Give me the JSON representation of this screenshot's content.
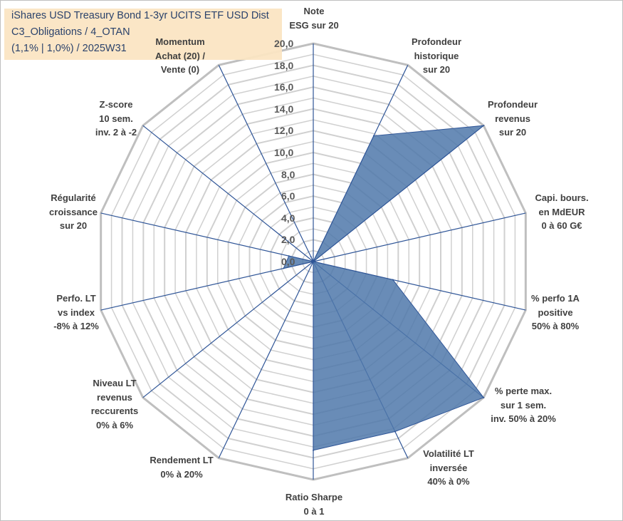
{
  "title_box": {
    "lines": [
      "iShares USD Treasury Bond 1-3yr UCITS ETF USD Dist",
      "C3_Obligations / 4_OTAN",
      "(1,1% | 1,0%) / 2025W31"
    ],
    "background": "#fbe5c3",
    "text_color": "#1f3864"
  },
  "chart_data": {
    "type": "radar",
    "axes": [
      [
        "Note",
        "ESG sur 20"
      ],
      [
        "Profondeur",
        "historique",
        "sur 20"
      ],
      [
        "Profondeur",
        "revenus",
        "sur 20"
      ],
      [
        "Capi. bours.",
        "en MdEUR",
        "0 à 60 G€"
      ],
      [
        "% perfo 1A",
        "positive",
        "50% à 80%"
      ],
      [
        "% perte max.",
        "sur 1 sem.",
        "inv. 50% à 20%"
      ],
      [
        "Volatilité LT",
        "inversée",
        "40% à 0%"
      ],
      [
        "Ratio Sharpe",
        "0 à 1"
      ],
      [
        "Rendement LT",
        "0% à 20%"
      ],
      [
        "Niveau LT",
        "revenus",
        "reccurents",
        "0% à 6%"
      ],
      [
        "Perfo. LT",
        "vs index",
        "-8% à 12%"
      ],
      [
        "Régularité",
        "croissance",
        "sur 20"
      ],
      [
        "Z-score",
        "10 sem.",
        "inv. 2 à -2"
      ],
      [
        "Momentum",
        "Achat (20) /",
        "Vente (0)"
      ]
    ],
    "values": [
      0,
      12.8,
      20,
      0,
      7.5,
      20,
      17.3,
      17.3,
      0,
      0,
      2.8,
      2.3,
      0,
      0.5
    ],
    "ticks": [
      "0,0",
      "2,0",
      "4,0",
      "6,0",
      "8,0",
      "10,0",
      "12,0",
      "14,0",
      "16,0",
      "18,0",
      "20,0"
    ],
    "ylim": [
      0,
      20
    ],
    "grid": true,
    "fill_color": "#4f78aa",
    "line_color": "#2f5597",
    "grid_color": "#d0d0d0",
    "outer_grid_color": "#bfbfbf"
  }
}
